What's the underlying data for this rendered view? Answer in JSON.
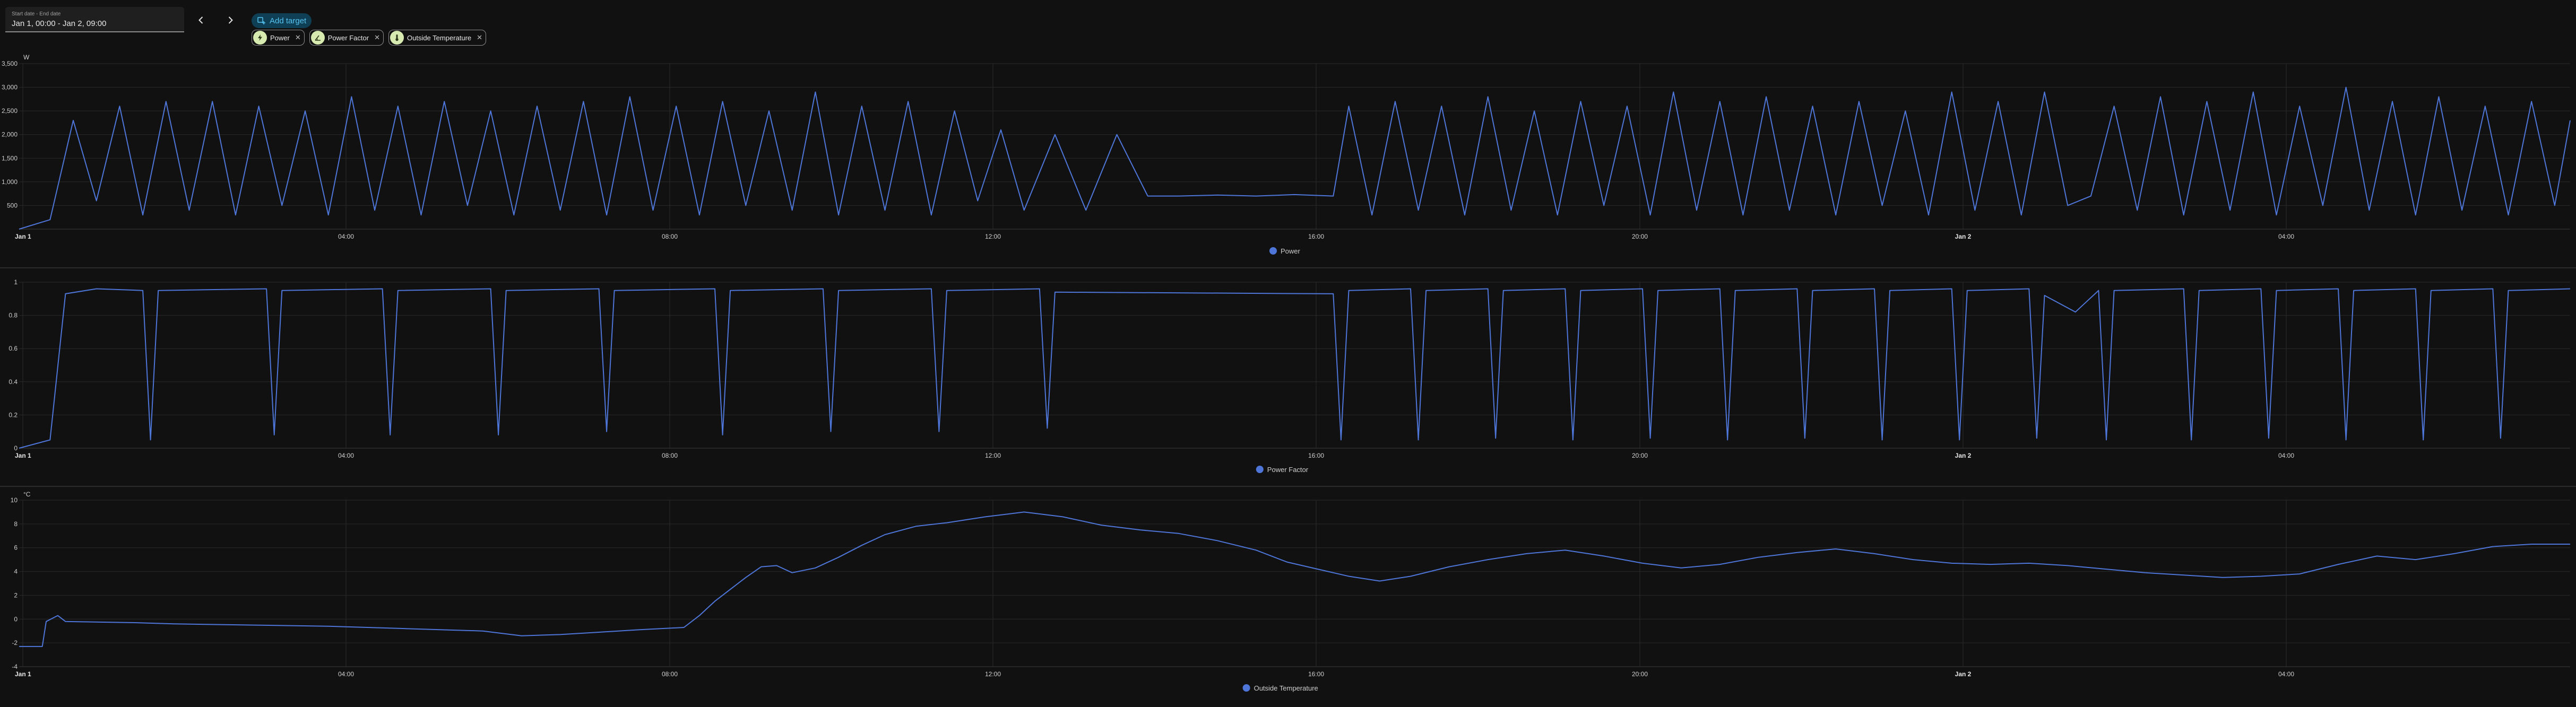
{
  "date_picker": {
    "label": "Start date - End date",
    "value": "Jan 1, 00:00 - Jan 2, 09:00"
  },
  "nav": {
    "prev_icon": "chevron-left-icon",
    "next_icon": "chevron-right-icon"
  },
  "add_target": {
    "label": "Add target",
    "icon": "plus-target-icon"
  },
  "targets": [
    {
      "label": "Power",
      "icon": "flash-icon"
    },
    {
      "label": "Power Factor",
      "icon": "angle-acute-icon"
    },
    {
      "label": "Outside Temperature",
      "icon": "thermometer-icon"
    }
  ],
  "colors": {
    "series": "#4e75d8",
    "background": "#111111",
    "grid": "#2a2a2a",
    "accent": "#55c3f0"
  },
  "x_ticks": [
    "Jan 1",
    "04:00",
    "08:00",
    "12:00",
    "16:00",
    "20:00",
    "Jan 2",
    "04:00"
  ],
  "chart_data": [
    {
      "type": "line",
      "unit": "W",
      "xlim": [
        0,
        33
      ],
      "ylim": [
        0,
        3500
      ],
      "y_ticks": [
        "500",
        "1,000",
        "1,500",
        "2,000",
        "2,500",
        "3,000",
        "3,500"
      ],
      "legend": "Power",
      "series": [
        {
          "name": "Power",
          "values": [
            [
              0,
              0
            ],
            [
              0.4,
              200
            ],
            [
              0.7,
              2300
            ],
            [
              1.0,
              600
            ],
            [
              1.3,
              2600
            ],
            [
              1.6,
              300
            ],
            [
              1.9,
              2700
            ],
            [
              2.2,
              400
            ],
            [
              2.5,
              2700
            ],
            [
              2.8,
              300
            ],
            [
              3.1,
              2600
            ],
            [
              3.4,
              500
            ],
            [
              3.7,
              2500
            ],
            [
              4.0,
              300
            ],
            [
              4.3,
              2800
            ],
            [
              4.6,
              400
            ],
            [
              4.9,
              2600
            ],
            [
              5.2,
              300
            ],
            [
              5.5,
              2700
            ],
            [
              5.8,
              500
            ],
            [
              6.1,
              2500
            ],
            [
              6.4,
              300
            ],
            [
              6.7,
              2600
            ],
            [
              7.0,
              400
            ],
            [
              7.3,
              2700
            ],
            [
              7.6,
              300
            ],
            [
              7.9,
              2800
            ],
            [
              8.2,
              400
            ],
            [
              8.5,
              2600
            ],
            [
              8.8,
              300
            ],
            [
              9.1,
              2700
            ],
            [
              9.4,
              500
            ],
            [
              9.7,
              2500
            ],
            [
              10.0,
              400
            ],
            [
              10.3,
              2900
            ],
            [
              10.6,
              300
            ],
            [
              10.9,
              2600
            ],
            [
              11.2,
              400
            ],
            [
              11.5,
              2700
            ],
            [
              11.8,
              300
            ],
            [
              12.1,
              2500
            ],
            [
              12.4,
              600
            ],
            [
              12.7,
              2100
            ],
            [
              13.0,
              400
            ],
            [
              13.4,
              2000
            ],
            [
              13.8,
              400
            ],
            [
              14.2,
              2000
            ],
            [
              14.6,
              700
            ],
            [
              15.0,
              700
            ],
            [
              15.5,
              720
            ],
            [
              16.0,
              700
            ],
            [
              16.5,
              730
            ],
            [
              17.0,
              700
            ],
            [
              17.2,
              2600
            ],
            [
              17.5,
              300
            ],
            [
              17.8,
              2700
            ],
            [
              18.1,
              400
            ],
            [
              18.4,
              2600
            ],
            [
              18.7,
              300
            ],
            [
              19.0,
              2800
            ],
            [
              19.3,
              400
            ],
            [
              19.6,
              2500
            ],
            [
              19.9,
              300
            ],
            [
              20.2,
              2700
            ],
            [
              20.5,
              500
            ],
            [
              20.8,
              2600
            ],
            [
              21.1,
              300
            ],
            [
              21.4,
              2900
            ],
            [
              21.7,
              400
            ],
            [
              22.0,
              2700
            ],
            [
              22.3,
              300
            ],
            [
              22.6,
              2800
            ],
            [
              22.9,
              400
            ],
            [
              23.2,
              2600
            ],
            [
              23.5,
              300
            ],
            [
              23.8,
              2700
            ],
            [
              24.1,
              500
            ],
            [
              24.4,
              2500
            ],
            [
              24.7,
              300
            ],
            [
              25.0,
              2900
            ],
            [
              25.3,
              400
            ],
            [
              25.6,
              2700
            ],
            [
              25.9,
              300
            ],
            [
              26.2,
              2900
            ],
            [
              26.5,
              500
            ],
            [
              26.8,
              700
            ],
            [
              27.1,
              2600
            ],
            [
              27.4,
              400
            ],
            [
              27.7,
              2800
            ],
            [
              28.0,
              300
            ],
            [
              28.3,
              2700
            ],
            [
              28.6,
              400
            ],
            [
              28.9,
              2900
            ],
            [
              29.2,
              300
            ],
            [
              29.5,
              2600
            ],
            [
              29.8,
              500
            ],
            [
              30.1,
              3000
            ],
            [
              30.4,
              400
            ],
            [
              30.7,
              2700
            ],
            [
              31.0,
              300
            ],
            [
              31.3,
              2800
            ],
            [
              31.6,
              400
            ],
            [
              31.9,
              2600
            ],
            [
              32.2,
              300
            ],
            [
              32.5,
              2700
            ],
            [
              32.8,
              500
            ],
            [
              33,
              2300
            ]
          ]
        }
      ]
    },
    {
      "type": "line",
      "unit": "",
      "xlim": [
        0,
        33
      ],
      "ylim": [
        0,
        1
      ],
      "y_ticks": [
        "0",
        "0.2",
        "0.4",
        "0.6",
        "0.8",
        "1"
      ],
      "legend": "Power Factor",
      "series": [
        {
          "name": "Power Factor",
          "values": [
            [
              0,
              0
            ],
            [
              0.4,
              0.05
            ],
            [
              0.6,
              0.93
            ],
            [
              1.0,
              0.96
            ],
            [
              1.6,
              0.95
            ],
            [
              1.7,
              0.05
            ],
            [
              1.8,
              0.95
            ],
            [
              3.2,
              0.96
            ],
            [
              3.3,
              0.08
            ],
            [
              3.4,
              0.95
            ],
            [
              4.7,
              0.96
            ],
            [
              4.8,
              0.08
            ],
            [
              4.9,
              0.95
            ],
            [
              6.1,
              0.96
            ],
            [
              6.2,
              0.08
            ],
            [
              6.3,
              0.95
            ],
            [
              7.5,
              0.96
            ],
            [
              7.6,
              0.1
            ],
            [
              7.7,
              0.95
            ],
            [
              9.0,
              0.96
            ],
            [
              9.1,
              0.08
            ],
            [
              9.2,
              0.95
            ],
            [
              10.4,
              0.96
            ],
            [
              10.5,
              0.1
            ],
            [
              10.6,
              0.95
            ],
            [
              11.8,
              0.96
            ],
            [
              11.9,
              0.1
            ],
            [
              12.0,
              0.95
            ],
            [
              13.2,
              0.96
            ],
            [
              13.3,
              0.12
            ],
            [
              13.4,
              0.94
            ],
            [
              17.0,
              0.93
            ],
            [
              17.1,
              0.05
            ],
            [
              17.2,
              0.95
            ],
            [
              18.0,
              0.96
            ],
            [
              18.1,
              0.05
            ],
            [
              18.2,
              0.95
            ],
            [
              19.0,
              0.96
            ],
            [
              19.1,
              0.06
            ],
            [
              19.2,
              0.95
            ],
            [
              20.0,
              0.96
            ],
            [
              20.1,
              0.05
            ],
            [
              20.2,
              0.95
            ],
            [
              21.0,
              0.96
            ],
            [
              21.1,
              0.06
            ],
            [
              21.2,
              0.95
            ],
            [
              22.0,
              0.96
            ],
            [
              22.1,
              0.05
            ],
            [
              22.2,
              0.95
            ],
            [
              23.0,
              0.96
            ],
            [
              23.1,
              0.06
            ],
            [
              23.2,
              0.95
            ],
            [
              24.0,
              0.96
            ],
            [
              24.1,
              0.05
            ],
            [
              24.2,
              0.95
            ],
            [
              25.0,
              0.96
            ],
            [
              25.1,
              0.05
            ],
            [
              25.2,
              0.95
            ],
            [
              26.0,
              0.96
            ],
            [
              26.1,
              0.06
            ],
            [
              26.2,
              0.92
            ],
            [
              26.6,
              0.82
            ],
            [
              26.9,
              0.95
            ],
            [
              27.0,
              0.05
            ],
            [
              27.1,
              0.95
            ],
            [
              28.0,
              0.96
            ],
            [
              28.1,
              0.05
            ],
            [
              28.2,
              0.95
            ],
            [
              29.0,
              0.96
            ],
            [
              29.1,
              0.06
            ],
            [
              29.2,
              0.95
            ],
            [
              30.0,
              0.96
            ],
            [
              30.1,
              0.05
            ],
            [
              30.2,
              0.95
            ],
            [
              31.0,
              0.96
            ],
            [
              31.1,
              0.05
            ],
            [
              31.2,
              0.95
            ],
            [
              32.0,
              0.96
            ],
            [
              32.1,
              0.06
            ],
            [
              32.2,
              0.95
            ],
            [
              33,
              0.96
            ]
          ]
        }
      ]
    },
    {
      "type": "line",
      "unit": "°C",
      "xlim": [
        0,
        33
      ],
      "ylim": [
        -4,
        10
      ],
      "y_ticks": [
        "-4",
        "-2",
        "0",
        "2",
        "4",
        "6",
        "8",
        "10"
      ],
      "legend": "Outside Temperature",
      "series": [
        {
          "name": "Outside Temperature",
          "values": [
            [
              0,
              -2.3
            ],
            [
              0.3,
              -2.3
            ],
            [
              0.35,
              -0.2
            ],
            [
              0.5,
              0.3
            ],
            [
              0.6,
              -0.2
            ],
            [
              1.5,
              -0.3
            ],
            [
              2.0,
              -0.4
            ],
            [
              3.0,
              -0.5
            ],
            [
              4.0,
              -0.6
            ],
            [
              5.0,
              -0.8
            ],
            [
              6.0,
              -1.0
            ],
            [
              6.5,
              -1.4
            ],
            [
              7.0,
              -1.3
            ],
            [
              7.5,
              -1.1
            ],
            [
              8.0,
              -0.9
            ],
            [
              8.6,
              -0.7
            ],
            [
              8.8,
              0.3
            ],
            [
              9.0,
              1.5
            ],
            [
              9.2,
              2.5
            ],
            [
              9.4,
              3.5
            ],
            [
              9.6,
              4.4
            ],
            [
              9.8,
              4.5
            ],
            [
              10.0,
              3.9
            ],
            [
              10.3,
              4.3
            ],
            [
              10.6,
              5.2
            ],
            [
              10.9,
              6.2
            ],
            [
              11.2,
              7.1
            ],
            [
              11.6,
              7.8
            ],
            [
              12.0,
              8.1
            ],
            [
              12.5,
              8.6
            ],
            [
              13.0,
              9.0
            ],
            [
              13.5,
              8.6
            ],
            [
              14.0,
              7.9
            ],
            [
              14.5,
              7.5
            ],
            [
              15.0,
              7.2
            ],
            [
              15.5,
              6.6
            ],
            [
              16.0,
              5.8
            ],
            [
              16.4,
              4.8
            ],
            [
              16.8,
              4.2
            ],
            [
              17.2,
              3.6
            ],
            [
              17.6,
              3.2
            ],
            [
              18.0,
              3.6
            ],
            [
              18.5,
              4.4
            ],
            [
              19.0,
              5.0
            ],
            [
              19.5,
              5.5
            ],
            [
              20.0,
              5.8
            ],
            [
              20.5,
              5.3
            ],
            [
              21.0,
              4.7
            ],
            [
              21.5,
              4.3
            ],
            [
              22.0,
              4.6
            ],
            [
              22.5,
              5.2
            ],
            [
              23.0,
              5.6
            ],
            [
              23.5,
              5.9
            ],
            [
              24.0,
              5.5
            ],
            [
              24.5,
              5.0
            ],
            [
              25.0,
              4.7
            ],
            [
              25.5,
              4.6
            ],
            [
              26.0,
              4.7
            ],
            [
              26.5,
              4.5
            ],
            [
              27.0,
              4.2
            ],
            [
              27.5,
              3.9
            ],
            [
              28.0,
              3.7
            ],
            [
              28.5,
              3.5
            ],
            [
              29.0,
              3.6
            ],
            [
              29.5,
              3.8
            ],
            [
              30.0,
              4.6
            ],
            [
              30.5,
              5.3
            ],
            [
              31.0,
              5.0
            ],
            [
              31.5,
              5.5
            ],
            [
              32.0,
              6.1
            ],
            [
              32.5,
              6.3
            ],
            [
              33,
              6.3
            ]
          ]
        }
      ]
    }
  ]
}
